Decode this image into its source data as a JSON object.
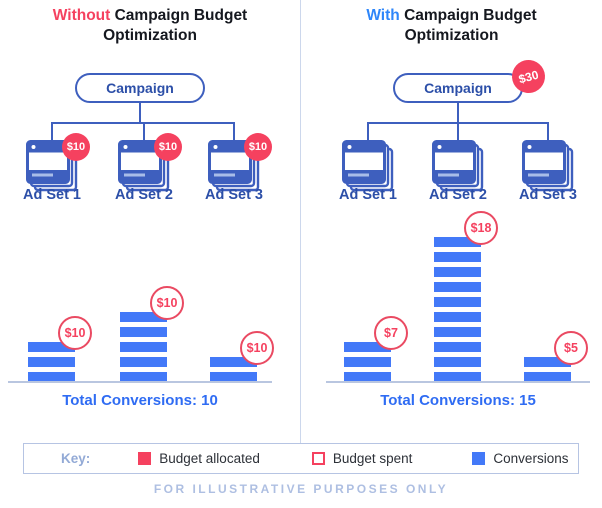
{
  "panels": [
    {
      "title_highlight": "Without",
      "title_rest": "Campaign Budget",
      "title_line2": "Optimization",
      "campaign": {
        "label": "Campaign",
        "budget_badge": null
      },
      "ad_sets": [
        {
          "label": "Ad Set 1",
          "allocated": "$10",
          "spent": "$10",
          "conversions": 3
        },
        {
          "label": "Ad Set 2",
          "allocated": "$10",
          "spent": "$10",
          "conversions": 5
        },
        {
          "label": "Ad Set 3",
          "allocated": "$10",
          "spent": "$10",
          "conversions": 2
        }
      ],
      "total": "Total Conversions: 10"
    },
    {
      "title_highlight": "With",
      "title_rest": "Campaign Budget",
      "title_line2": "Optimization",
      "campaign": {
        "label": "Campaign",
        "budget_badge": "$30"
      },
      "ad_sets": [
        {
          "label": "Ad Set 1",
          "spent": "$7",
          "conversions": 3
        },
        {
          "label": "Ad Set 2",
          "spent": "$18",
          "conversions": 10
        },
        {
          "label": "Ad Set 3",
          "spent": "$5",
          "conversions": 2
        }
      ],
      "total": "Total Conversions: 15"
    }
  ],
  "key": {
    "label": "Key:",
    "items": [
      {
        "label": "Budget allocated",
        "swatch": "filled-red"
      },
      {
        "label": "Budget spent",
        "swatch": "outline-red"
      },
      {
        "label": "Conversions",
        "swatch": "filled-blue"
      }
    ]
  },
  "footer": "FOR ILLUSTRATIVE PURPOSES ONLY",
  "colors": {
    "budget_red": "#f5415f",
    "conversions_blue": "#4379f8",
    "with_blue": "#2e86fa",
    "structure_blue": "#3e5fbe"
  },
  "chart_data": [
    {
      "type": "bar",
      "title": "Without Campaign Budget Optimization",
      "categories": [
        "Ad Set 1",
        "Ad Set 2",
        "Ad Set 3"
      ],
      "series": [
        {
          "name": "Conversions",
          "values": [
            3,
            5,
            2
          ]
        },
        {
          "name": "Budget allocated",
          "values": [
            "$10",
            "$10",
            "$10"
          ]
        },
        {
          "name": "Budget spent",
          "values": [
            "$10",
            "$10",
            "$10"
          ]
        }
      ],
      "total_conversions": 10,
      "xlabel": "",
      "ylabel": "",
      "legend_position": "bottom",
      "grid": false
    },
    {
      "type": "bar",
      "title": "With Campaign Budget Optimization",
      "categories": [
        "Ad Set 1",
        "Ad Set 2",
        "Ad Set 3"
      ],
      "campaign_budget_allocated": "$30",
      "series": [
        {
          "name": "Conversions",
          "values": [
            3,
            10,
            2
          ]
        },
        {
          "name": "Budget spent",
          "values": [
            "$7",
            "$18",
            "$5"
          ]
        }
      ],
      "total_conversions": 15,
      "xlabel": "",
      "ylabel": "",
      "legend_position": "bottom",
      "grid": false
    }
  ]
}
